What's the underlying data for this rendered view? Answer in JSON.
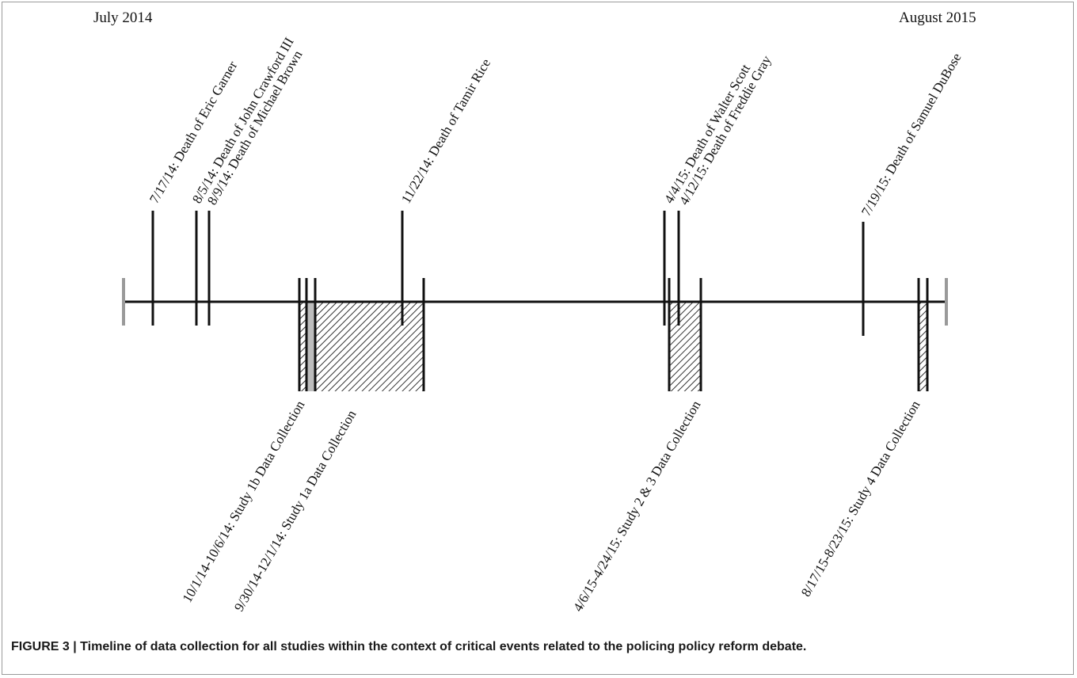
{
  "timeline": {
    "start_label": "July 2014",
    "end_label": "August 2015",
    "events": [
      {
        "label": "7/17/14:  Death of Eric Garner"
      },
      {
        "label": "8/5/14: Death of John Crawford III"
      },
      {
        "label": "8/9/14: Death of Michael Brown"
      },
      {
        "label": "11/22/14: Death of Tamir Rice"
      },
      {
        "label": "4/4/15: Death of Walter Scott"
      },
      {
        "label": "4/12/15: Death of Freddie Gray"
      },
      {
        "label": "7/19/15: Death of Samuel DuBose"
      }
    ],
    "periods": [
      {
        "label": "10/1/14-10/6/14: Study 1b Data Collection"
      },
      {
        "label": "9/30/14-12/1/14: Study 1a Data Collection"
      },
      {
        "label": "4/6/15-4/24/15: Study 2 & 3 Data Collection"
      },
      {
        "label": "8/17/15-8/23/15: Study 4 Data Collection"
      }
    ]
  },
  "caption": "FIGURE 3 | Timeline of data collection for all studies within the context of critical events related to the policing policy reform debate."
}
